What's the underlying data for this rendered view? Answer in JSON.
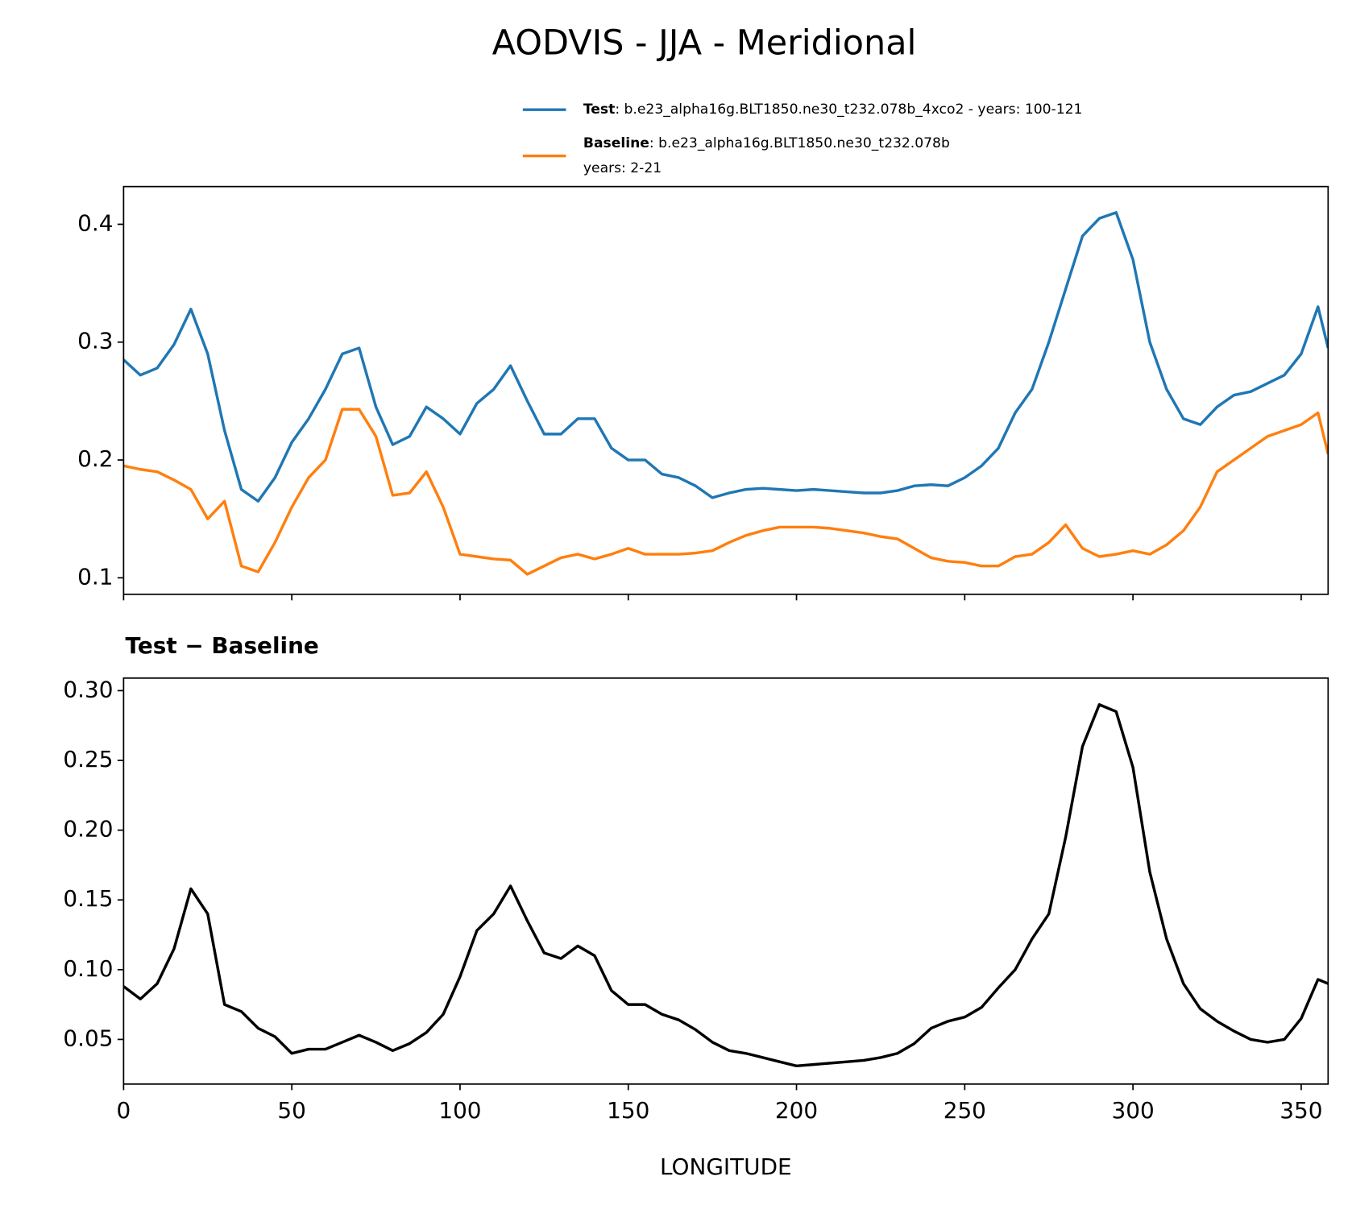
{
  "title": "AODVIS - JJA - Meridional",
  "chart_data": [
    {
      "type": "line",
      "x": [
        0,
        5,
        10,
        15,
        20,
        25,
        30,
        35,
        40,
        45,
        50,
        55,
        60,
        65,
        70,
        75,
        80,
        85,
        90,
        95,
        100,
        105,
        110,
        115,
        120,
        125,
        130,
        135,
        140,
        145,
        150,
        155,
        160,
        165,
        170,
        175,
        180,
        185,
        190,
        195,
        200,
        205,
        210,
        215,
        220,
        225,
        230,
        235,
        240,
        245,
        250,
        255,
        260,
        265,
        270,
        275,
        280,
        285,
        290,
        295,
        300,
        305,
        310,
        315,
        320,
        325,
        330,
        335,
        340,
        345,
        350,
        355,
        358
      ],
      "series": [
        {
          "name": "Test",
          "description": [
            ": b.e23_alpha16g.BLT1850.ne30_t232.078b_4xco2 - years: 100-121"
          ],
          "color": "#1f77b4",
          "values": [
            0.285,
            0.272,
            0.278,
            0.298,
            0.328,
            0.29,
            0.225,
            0.175,
            0.165,
            0.185,
            0.215,
            0.235,
            0.26,
            0.29,
            0.295,
            0.245,
            0.213,
            0.22,
            0.245,
            0.235,
            0.222,
            0.248,
            0.26,
            0.28,
            0.25,
            0.222,
            0.222,
            0.235,
            0.235,
            0.21,
            0.2,
            0.2,
            0.188,
            0.185,
            0.178,
            0.168,
            0.172,
            0.175,
            0.176,
            0.175,
            0.174,
            0.175,
            0.174,
            0.173,
            0.172,
            0.172,
            0.174,
            0.178,
            0.179,
            0.178,
            0.185,
            0.195,
            0.21,
            0.24,
            0.26,
            0.3,
            0.345,
            0.39,
            0.405,
            0.41,
            0.37,
            0.3,
            0.26,
            0.235,
            0.23,
            0.245,
            0.255,
            0.258,
            0.265,
            0.272,
            0.29,
            0.33,
            0.295
          ]
        },
        {
          "name": "Baseline",
          "description": [
            ": b.e23_alpha16g.BLT1850.ne30_t232.078b",
            "years: 2-21"
          ],
          "color": "#ff7f0e",
          "values": [
            0.195,
            0.192,
            0.19,
            0.183,
            0.175,
            0.15,
            0.165,
            0.11,
            0.105,
            0.13,
            0.16,
            0.185,
            0.2,
            0.243,
            0.243,
            0.22,
            0.17,
            0.172,
            0.19,
            0.16,
            0.12,
            0.118,
            0.116,
            0.115,
            0.103,
            0.11,
            0.117,
            0.12,
            0.116,
            0.12,
            0.125,
            0.12,
            0.12,
            0.12,
            0.121,
            0.123,
            0.13,
            0.136,
            0.14,
            0.143,
            0.143,
            0.143,
            0.142,
            0.14,
            0.138,
            0.135,
            0.133,
            0.125,
            0.117,
            0.114,
            0.113,
            0.11,
            0.11,
            0.118,
            0.12,
            0.13,
            0.145,
            0.125,
            0.118,
            0.12,
            0.123,
            0.12,
            0.128,
            0.14,
            0.16,
            0.19,
            0.2,
            0.21,
            0.22,
            0.225,
            0.23,
            0.24,
            0.205
          ]
        }
      ],
      "xlim": [
        0,
        358
      ],
      "xticks": [
        0,
        50,
        100,
        150,
        200,
        250,
        300,
        350
      ],
      "ylim": [
        0.086,
        0.432
      ],
      "yticks": [
        0.1,
        0.2,
        0.3,
        0.4
      ]
    },
    {
      "type": "line",
      "title": "Test − Baseline",
      "xlabel": "LONGITUDE",
      "x": [
        0,
        5,
        10,
        15,
        20,
        25,
        30,
        35,
        40,
        45,
        50,
        55,
        60,
        65,
        70,
        75,
        80,
        85,
        90,
        95,
        100,
        105,
        110,
        115,
        120,
        125,
        130,
        135,
        140,
        145,
        150,
        155,
        160,
        165,
        170,
        175,
        180,
        185,
        190,
        195,
        200,
        205,
        210,
        215,
        220,
        225,
        230,
        235,
        240,
        245,
        250,
        255,
        260,
        265,
        270,
        275,
        280,
        285,
        290,
        295,
        300,
        305,
        310,
        315,
        320,
        325,
        330,
        335,
        340,
        345,
        350,
        355,
        358
      ],
      "color": "#000000",
      "values": [
        0.088,
        0.079,
        0.09,
        0.115,
        0.158,
        0.14,
        0.075,
        0.07,
        0.058,
        0.052,
        0.04,
        0.043,
        0.043,
        0.048,
        0.053,
        0.048,
        0.042,
        0.047,
        0.055,
        0.068,
        0.095,
        0.128,
        0.14,
        0.16,
        0.135,
        0.112,
        0.108,
        0.117,
        0.11,
        0.085,
        0.075,
        0.075,
        0.068,
        0.064,
        0.057,
        0.048,
        0.042,
        0.04,
        0.037,
        0.034,
        0.031,
        0.032,
        0.033,
        0.034,
        0.035,
        0.037,
        0.04,
        0.047,
        0.058,
        0.063,
        0.066,
        0.073,
        0.087,
        0.1,
        0.122,
        0.14,
        0.195,
        0.26,
        0.29,
        0.285,
        0.245,
        0.17,
        0.122,
        0.09,
        0.072,
        0.063,
        0.056,
        0.05,
        0.048,
        0.05,
        0.065,
        0.093,
        0.09
      ],
      "xlim": [
        0,
        358
      ],
      "xticks": [
        0,
        50,
        100,
        150,
        200,
        250,
        300,
        350
      ],
      "ylim": [
        0.018,
        0.309
      ],
      "yticks": [
        {
          "value": 0.05,
          "label": "0.05"
        },
        {
          "value": 0.1,
          "label": "0.10"
        },
        {
          "value": 0.15,
          "label": "0.15"
        },
        {
          "value": 0.2,
          "label": "0.20"
        },
        {
          "value": 0.25,
          "label": "0.25"
        },
        {
          "value": 0.3,
          "label": "0.30"
        }
      ]
    }
  ]
}
